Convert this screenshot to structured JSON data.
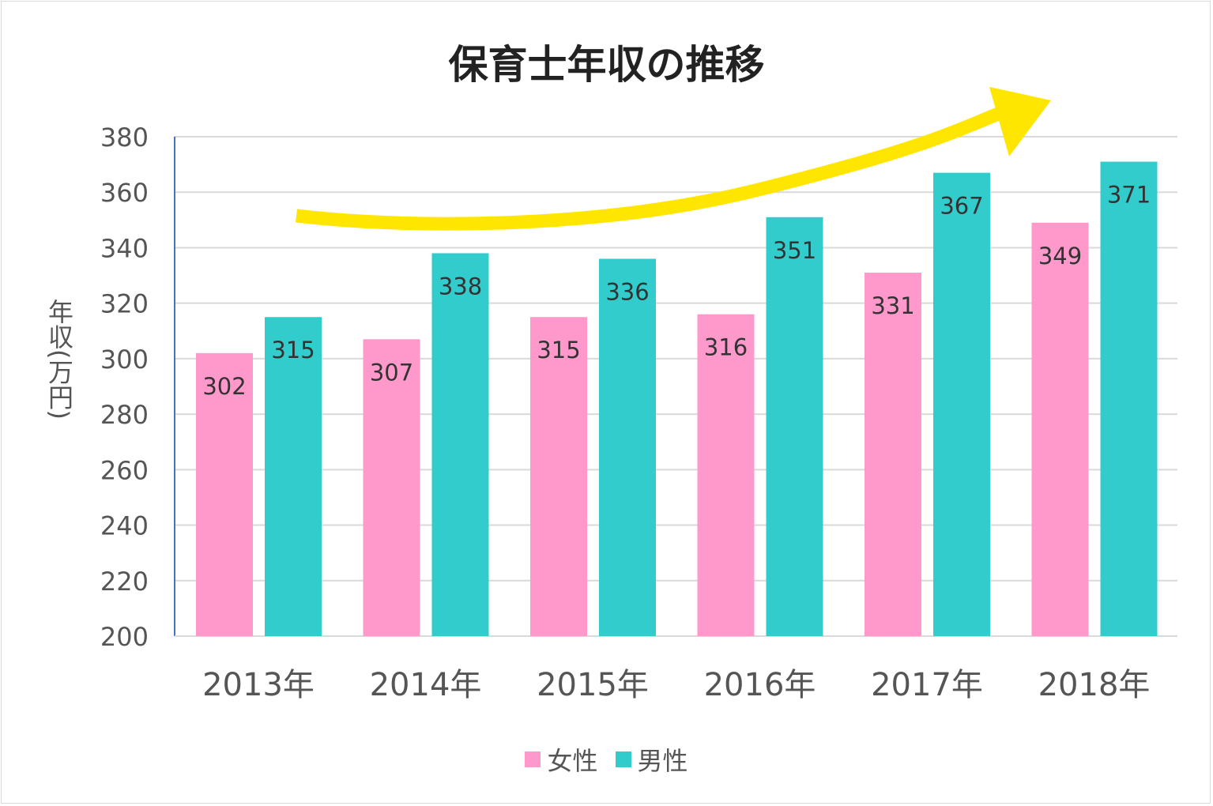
{
  "chart_data": {
    "type": "bar",
    "title": "保育士年収の推移",
    "ylabel": "年収(万円)",
    "xlabel": "",
    "categories": [
      "2013年",
      "2014年",
      "2015年",
      "2016年",
      "2017年",
      "2018年"
    ],
    "series": [
      {
        "name": "女性",
        "color": "#FF99CC",
        "values": [
          302,
          307,
          315,
          316,
          331,
          349
        ]
      },
      {
        "name": "男性",
        "color": "#33CCCC",
        "values": [
          315,
          338,
          336,
          351,
          367,
          371
        ]
      }
    ],
    "ylim": [
      200,
      380
    ],
    "yticks": [
      200,
      220,
      240,
      260,
      280,
      300,
      320,
      340,
      360,
      380
    ],
    "grid": true,
    "legend": "bottom",
    "annotation": {
      "type": "arrow",
      "color": "#FFE600",
      "meaning": "upward trend"
    }
  }
}
